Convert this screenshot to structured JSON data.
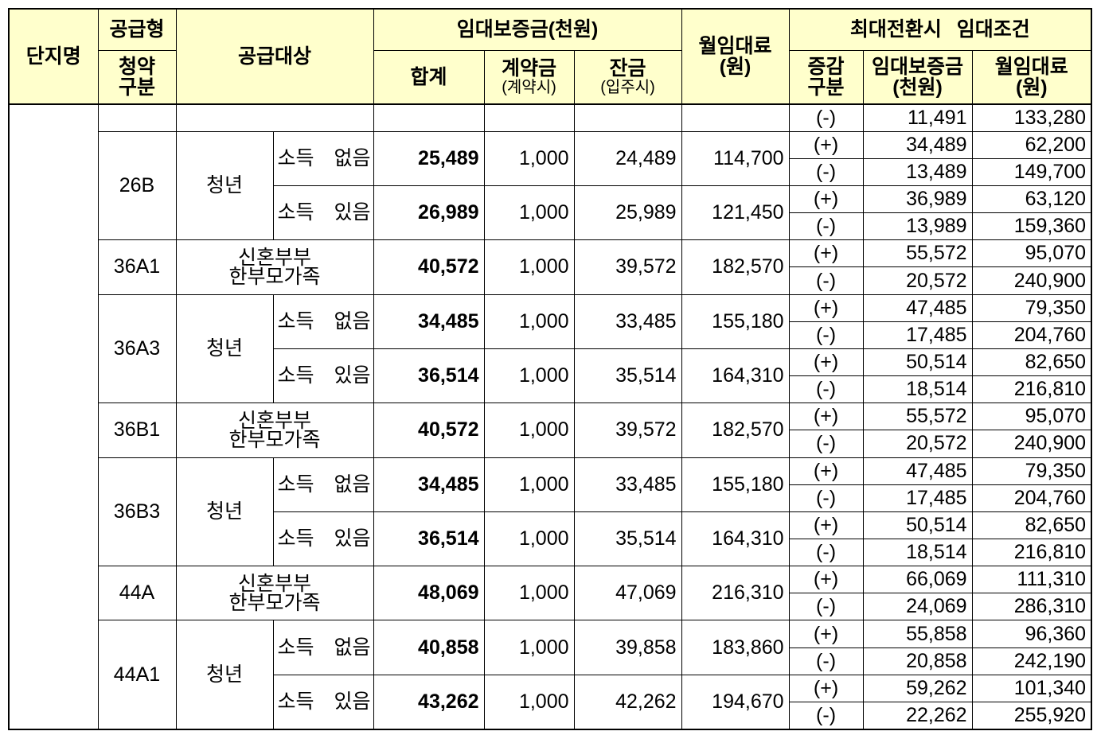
{
  "header": {
    "complex_name": "단지명",
    "supply_type": "공급형",
    "subscription_category": [
      "청약",
      "구분"
    ],
    "supply_target": "공급대상",
    "rental_deposit": "임대보증금(천원)",
    "total": "합계",
    "down_payment": [
      "계약금",
      "(계약시)"
    ],
    "balance": [
      "잔금",
      "(입주시)"
    ],
    "monthly_rent": [
      "월임대료",
      "(원)"
    ],
    "max_conversion": "최대전환시 임대조건",
    "change_type": [
      "증감",
      "구분"
    ],
    "conversion_deposit": [
      "임대보증금",
      "(천원)"
    ],
    "conversion_rent": [
      "월임대료",
      "(원)"
    ]
  },
  "body": {
    "lead_row": {
      "sign": "(-)",
      "deposit": "11,491",
      "rent": "133,280"
    },
    "groups": [
      {
        "supply_type": "26B",
        "target": [
          "청년"
        ],
        "variants": [
          {
            "income": "소득 없음",
            "total": "25,489",
            "down_payment": "1,000",
            "balance": "24,489",
            "monthly_rent": "114,700",
            "conversion": [
              {
                "sign": "(+)",
                "deposit": "34,489",
                "rent": "62,200"
              },
              {
                "sign": "(-)",
                "deposit": "13,489",
                "rent": "149,700"
              }
            ]
          },
          {
            "income": "소득 있음",
            "total": "26,989",
            "down_payment": "1,000",
            "balance": "25,989",
            "monthly_rent": "121,450",
            "conversion": [
              {
                "sign": "(+)",
                "deposit": "36,989",
                "rent": "63,120"
              },
              {
                "sign": "(-)",
                "deposit": "13,989",
                "rent": "159,360"
              }
            ]
          }
        ]
      },
      {
        "supply_type": "36A1",
        "target": [
          "신혼부부",
          "한부모가족"
        ],
        "variants": [
          {
            "total": "40,572",
            "down_payment": "1,000",
            "balance": "39,572",
            "monthly_rent": "182,570",
            "conversion": [
              {
                "sign": "(+)",
                "deposit": "55,572",
                "rent": "95,070"
              },
              {
                "sign": "(-)",
                "deposit": "20,572",
                "rent": "240,900"
              }
            ]
          }
        ]
      },
      {
        "supply_type": "36A3",
        "target": [
          "청년"
        ],
        "variants": [
          {
            "income": "소득 없음",
            "total": "34,485",
            "down_payment": "1,000",
            "balance": "33,485",
            "monthly_rent": "155,180",
            "conversion": [
              {
                "sign": "(+)",
                "deposit": "47,485",
                "rent": "79,350"
              },
              {
                "sign": "(-)",
                "deposit": "17,485",
                "rent": "204,760"
              }
            ]
          },
          {
            "income": "소득 있음",
            "total": "36,514",
            "down_payment": "1,000",
            "balance": "35,514",
            "monthly_rent": "164,310",
            "conversion": [
              {
                "sign": "(+)",
                "deposit": "50,514",
                "rent": "82,650"
              },
              {
                "sign": "(-)",
                "deposit": "18,514",
                "rent": "216,810"
              }
            ]
          }
        ]
      },
      {
        "supply_type": "36B1",
        "target": [
          "신혼부부",
          "한부모가족"
        ],
        "variants": [
          {
            "total": "40,572",
            "down_payment": "1,000",
            "balance": "39,572",
            "monthly_rent": "182,570",
            "conversion": [
              {
                "sign": "(+)",
                "deposit": "55,572",
                "rent": "95,070"
              },
              {
                "sign": "(-)",
                "deposit": "20,572",
                "rent": "240,900"
              }
            ]
          }
        ]
      },
      {
        "supply_type": "36B3",
        "target": [
          "청년"
        ],
        "variants": [
          {
            "income": "소득 없음",
            "total": "34,485",
            "down_payment": "1,000",
            "balance": "33,485",
            "monthly_rent": "155,180",
            "conversion": [
              {
                "sign": "(+)",
                "deposit": "47,485",
                "rent": "79,350"
              },
              {
                "sign": "(-)",
                "deposit": "17,485",
                "rent": "204,760"
              }
            ]
          },
          {
            "income": "소득 있음",
            "total": "36,514",
            "down_payment": "1,000",
            "balance": "35,514",
            "monthly_rent": "164,310",
            "conversion": [
              {
                "sign": "(+)",
                "deposit": "50,514",
                "rent": "82,650"
              },
              {
                "sign": "(-)",
                "deposit": "18,514",
                "rent": "216,810"
              }
            ]
          }
        ]
      },
      {
        "supply_type": "44A",
        "target": [
          "신혼부부",
          "한부모가족"
        ],
        "variants": [
          {
            "total": "48,069",
            "down_payment": "1,000",
            "balance": "47,069",
            "monthly_rent": "216,310",
            "conversion": [
              {
                "sign": "(+)",
                "deposit": "66,069",
                "rent": "111,310"
              },
              {
                "sign": "(-)",
                "deposit": "24,069",
                "rent": "286,310"
              }
            ]
          }
        ]
      },
      {
        "supply_type": "44A1",
        "target": [
          "청년"
        ],
        "variants": [
          {
            "income": "소득 없음",
            "total": "40,858",
            "down_payment": "1,000",
            "balance": "39,858",
            "monthly_rent": "183,860",
            "conversion": [
              {
                "sign": "(+)",
                "deposit": "55,858",
                "rent": "96,360"
              },
              {
                "sign": "(-)",
                "deposit": "20,858",
                "rent": "242,190"
              }
            ]
          },
          {
            "income": "소득 있음",
            "total": "43,262",
            "down_payment": "1,000",
            "balance": "42,262",
            "monthly_rent": "194,670",
            "conversion": [
              {
                "sign": "(+)",
                "deposit": "59,262",
                "rent": "101,340"
              },
              {
                "sign": "(-)",
                "deposit": "22,262",
                "rent": "255,920"
              }
            ]
          }
        ]
      }
    ]
  },
  "colors": {
    "header_background": "#FFFFCC",
    "border": "#000000"
  }
}
